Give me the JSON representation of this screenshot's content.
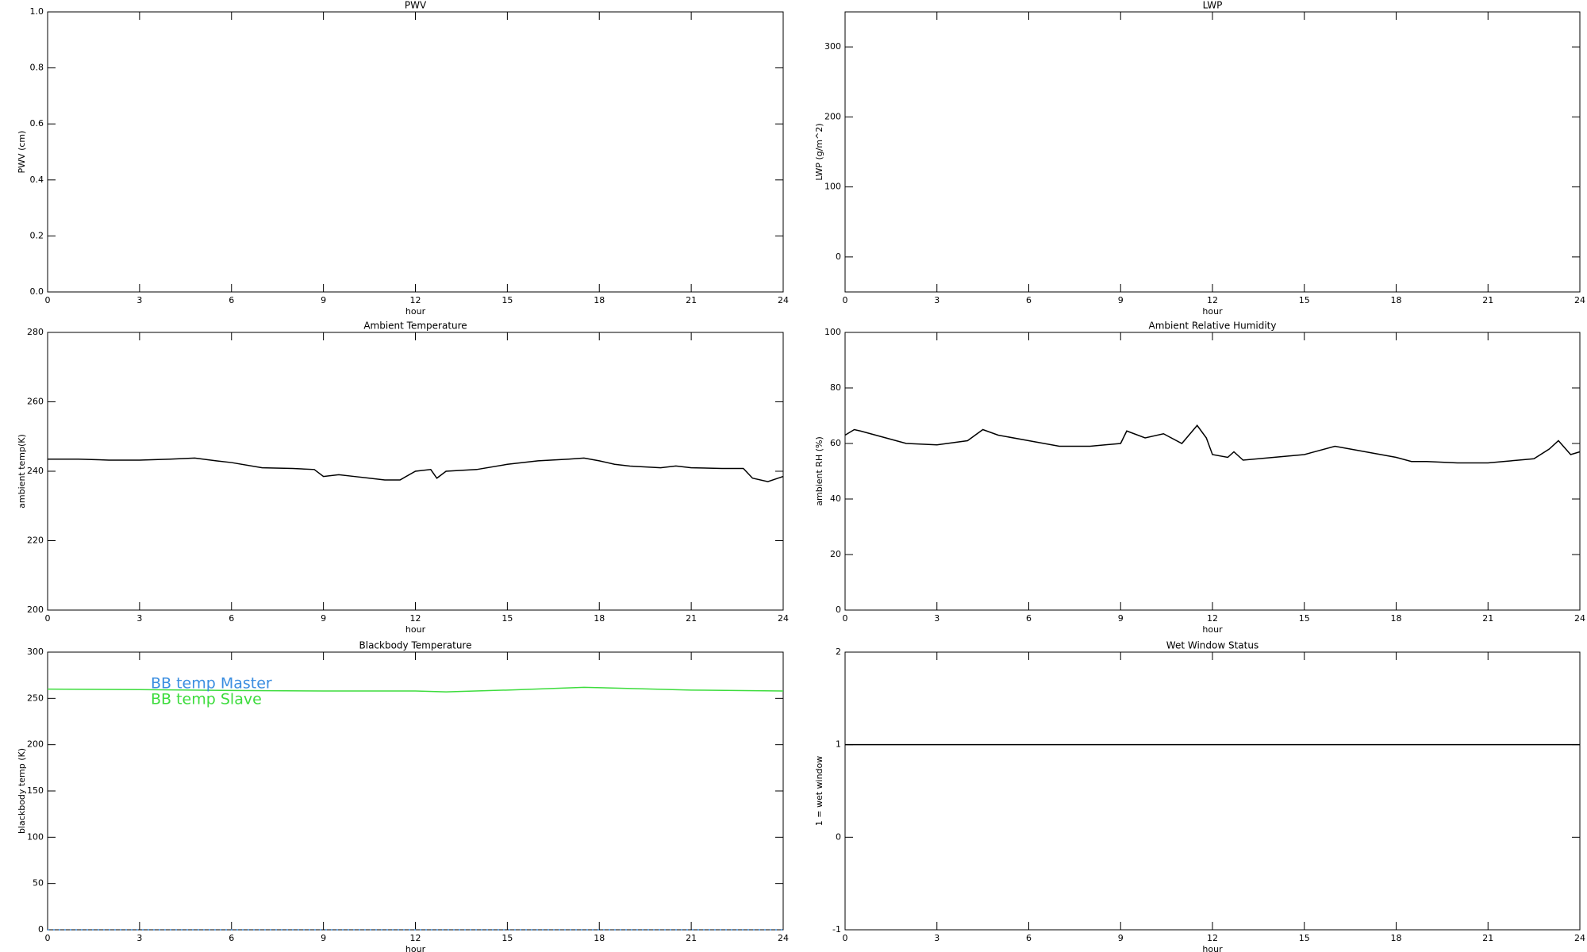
{
  "chart_data": [
    {
      "type": "line",
      "title": "PWV",
      "xlabel": "hour",
      "ylabel": "PWV (cm)",
      "x": [],
      "series": [],
      "xlim": [
        0,
        24
      ],
      "xticks": [
        0,
        3,
        6,
        9,
        12,
        15,
        18,
        21,
        24
      ],
      "ylim": [
        0,
        1
      ],
      "yticks": [
        {
          "value": 0,
          "label": "0.0"
        },
        0.2,
        0.4,
        0.6,
        0.8,
        {
          "value": 1,
          "label": "1.0"
        }
      ]
    },
    {
      "type": "line",
      "title": "LWP",
      "xlabel": "hour",
      "ylabel": "LWP (g/m^2)",
      "x": [],
      "series": [],
      "xlim": [
        0,
        24
      ],
      "xticks": [
        0,
        3,
        6,
        9,
        12,
        15,
        18,
        21,
        24
      ],
      "ylim": [
        -50,
        350
      ],
      "yticks": [
        0,
        100,
        200,
        300
      ]
    },
    {
      "type": "line",
      "title": "Ambient Temperature",
      "xlabel": "hour",
      "ylabel": "ambient temp(K)",
      "x": [
        0,
        1,
        2,
        3,
        4,
        4.8,
        5.5,
        6,
        7,
        8,
        8.7,
        9,
        9.5,
        10,
        10.5,
        11,
        11.5,
        12,
        12.5,
        12.7,
        13,
        14,
        15,
        16,
        17,
        17.5,
        18,
        18.5,
        19,
        20,
        20.5,
        21,
        22,
        22.7,
        23,
        23.5,
        24
      ],
      "series": [
        {
          "name": "ambient temp",
          "color": "#000000",
          "values": [
            243.5,
            243.5,
            243.2,
            243.2,
            243.5,
            243.8,
            243,
            242.5,
            241,
            240.8,
            240.5,
            238.5,
            239,
            238.5,
            238,
            237.5,
            237.5,
            240,
            240.5,
            238,
            240,
            240.5,
            242,
            243,
            243.5,
            243.8,
            243,
            242,
            241.5,
            241,
            241.5,
            241,
            240.8,
            240.8,
            238,
            237,
            238.5
          ]
        }
      ],
      "xlim": [
        0,
        24
      ],
      "xticks": [
        0,
        3,
        6,
        9,
        12,
        15,
        18,
        21,
        24
      ],
      "ylim": [
        200,
        280
      ],
      "yticks": [
        200,
        220,
        240,
        260,
        280
      ]
    },
    {
      "type": "line",
      "title": "Ambient Relative Humidity",
      "xlabel": "hour",
      "ylabel": "ambient RH (%)",
      "x": [
        0,
        0.3,
        0.5,
        1,
        2,
        3,
        4,
        4.5,
        5,
        6,
        7,
        8,
        9,
        9.2,
        9.8,
        10.4,
        11,
        11.5,
        11.8,
        12,
        12.5,
        12.7,
        13,
        14,
        15,
        16,
        16.5,
        17,
        18,
        18.5,
        19,
        20,
        21,
        21.5,
        22,
        22.5,
        23,
        23.3,
        23.7,
        24
      ],
      "series": [
        {
          "name": "ambient RH",
          "color": "#000000",
          "values": [
            63,
            65,
            64.5,
            63,
            60,
            59.5,
            61,
            65,
            63,
            61,
            59,
            59,
            60,
            64.5,
            62,
            63.5,
            60,
            66.5,
            62,
            56,
            55,
            57,
            54,
            55,
            56,
            59,
            58,
            57,
            55,
            53.5,
            53.5,
            53,
            53,
            53.5,
            54,
            54.5,
            58,
            61,
            56,
            57
          ]
        }
      ],
      "xlim": [
        0,
        24
      ],
      "xticks": [
        0,
        3,
        6,
        9,
        12,
        15,
        18,
        21,
        24
      ],
      "ylim": [
        0,
        100
      ],
      "yticks": [
        0,
        20,
        40,
        60,
        80,
        100
      ]
    },
    {
      "type": "line",
      "title": "Blackbody Temperature",
      "xlabel": "hour",
      "ylabel": "blackbody temp (K)",
      "x": [
        0,
        3,
        6,
        9,
        12,
        13,
        15,
        17.5,
        21,
        24
      ],
      "series": [
        {
          "name": "BB temp Master",
          "color": "#3b8ee0",
          "values": [
            0,
            0,
            0,
            0,
            0,
            0,
            0,
            0,
            0,
            0
          ]
        },
        {
          "name": "BB temp Slave",
          "color": "#3ddc3d",
          "values": [
            260,
            259.5,
            258.5,
            258,
            258,
            257,
            259,
            262,
            259,
            258
          ]
        }
      ],
      "legend": "upper left",
      "xlim": [
        0,
        24
      ],
      "xticks": [
        0,
        3,
        6,
        9,
        12,
        15,
        18,
        21,
        24
      ],
      "ylim": [
        0,
        300
      ],
      "yticks": [
        0,
        50,
        100,
        150,
        200,
        250,
        300
      ]
    },
    {
      "type": "line",
      "title": "Wet Window Status",
      "xlabel": "hour",
      "ylabel": "1 = wet window",
      "x": [
        0,
        24
      ],
      "series": [
        {
          "name": "wet window",
          "color": "#000000",
          "values": [
            1,
            1
          ]
        }
      ],
      "xlim": [
        0,
        24
      ],
      "xticks": [
        0,
        3,
        6,
        9,
        12,
        15,
        18,
        21,
        24
      ],
      "ylim": [
        -1,
        2
      ],
      "yticks": [
        -1,
        0,
        1,
        2
      ]
    }
  ]
}
